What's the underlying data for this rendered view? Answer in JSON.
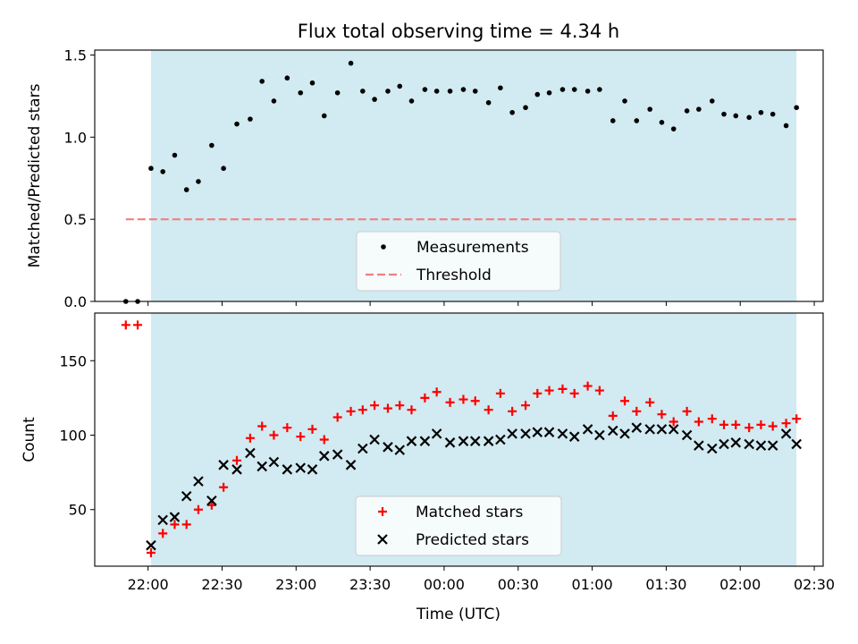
{
  "title": "Flux total observing time = 4.34 h",
  "xlabel": "Time (UTC)",
  "x_tick_labels": [
    "22:00",
    "22:30",
    "23:00",
    "23:30",
    "00:00",
    "00:30",
    "01:00",
    "01:30",
    "02:00",
    "02:30"
  ],
  "colors": {
    "observing_band": "#add8e6",
    "measurements": "#000000",
    "threshold": "#f08080",
    "matched": "#ff0000",
    "predicted": "#000000"
  },
  "chart_data": [
    {
      "type": "scatter",
      "ylabel": "Matched/Predicted stars",
      "y_ticks": [
        "0.0",
        "0.5",
        "1.0",
        "1.5"
      ],
      "ylim": [
        0,
        1.53
      ],
      "x_unit": "hours after 22:00 UTC",
      "xlim": [
        -0.36,
        4.56
      ],
      "legend": {
        "placement": "lower center",
        "entries": [
          "Measurements",
          "Threshold"
        ]
      },
      "shaded_span": [
        0.02,
        4.38
      ],
      "threshold": {
        "name": "Threshold",
        "y": 0.5,
        "x_range": [
          -0.15,
          4.38
        ]
      },
      "series": [
        {
          "name": "Measurements",
          "x": [
            -0.15,
            -0.07,
            0.02,
            0.1,
            0.18,
            0.26,
            0.34,
            0.43,
            0.51,
            0.6,
            0.69,
            0.77,
            0.85,
            0.94,
            1.03,
            1.11,
            1.19,
            1.28,
            1.37,
            1.45,
            1.53,
            1.62,
            1.7,
            1.78,
            1.87,
            1.95,
            2.04,
            2.13,
            2.21,
            2.3,
            2.38,
            2.46,
            2.55,
            2.63,
            2.71,
            2.8,
            2.88,
            2.97,
            3.05,
            3.14,
            3.22,
            3.3,
            3.39,
            3.47,
            3.55,
            3.64,
            3.72,
            3.81,
            3.89,
            3.97,
            4.06,
            4.14,
            4.22,
            4.31,
            4.38
          ],
          "y": [
            0.0,
            0.0,
            0.81,
            0.79,
            0.89,
            0.68,
            0.73,
            0.95,
            0.81,
            1.08,
            1.11,
            1.34,
            1.22,
            1.36,
            1.27,
            1.33,
            1.13,
            1.27,
            1.45,
            1.28,
            1.23,
            1.28,
            1.31,
            1.22,
            1.29,
            1.28,
            1.28,
            1.29,
            1.28,
            1.21,
            1.3,
            1.15,
            1.18,
            1.26,
            1.27,
            1.29,
            1.29,
            1.28,
            1.29,
            1.1,
            1.22,
            1.1,
            1.17,
            1.09,
            1.05,
            1.16,
            1.17,
            1.22,
            1.14,
            1.13,
            1.12,
            1.15,
            1.14,
            1.07,
            1.18
          ]
        }
      ]
    },
    {
      "type": "scatter",
      "ylabel": "Count",
      "y_ticks": [
        "50",
        "100",
        "150"
      ],
      "ylim": [
        12,
        182
      ],
      "x_unit": "hours after 22:00 UTC",
      "xlim": [
        -0.36,
        4.56
      ],
      "legend": {
        "placement": "lower center",
        "entries": [
          "Matched stars",
          "Predicted stars"
        ]
      },
      "shaded_span": [
        0.02,
        4.38
      ],
      "series": [
        {
          "name": "Matched stars",
          "x": [
            -0.15,
            -0.07,
            0.02,
            0.1,
            0.18,
            0.26,
            0.34,
            0.43,
            0.51,
            0.6,
            0.69,
            0.77,
            0.85,
            0.94,
            1.03,
            1.11,
            1.19,
            1.28,
            1.37,
            1.45,
            1.53,
            1.62,
            1.7,
            1.78,
            1.87,
            1.95,
            2.04,
            2.13,
            2.21,
            2.3,
            2.38,
            2.46,
            2.55,
            2.63,
            2.71,
            2.8,
            2.88,
            2.97,
            3.05,
            3.14,
            3.22,
            3.3,
            3.39,
            3.47,
            3.55,
            3.64,
            3.72,
            3.81,
            3.89,
            3.97,
            4.06,
            4.14,
            4.22,
            4.31,
            4.38
          ],
          "y": [
            174,
            174,
            21,
            34,
            40,
            40,
            50,
            53,
            65,
            83,
            98,
            106,
            100,
            105,
            99,
            104,
            97,
            112,
            116,
            117,
            120,
            118,
            120,
            117,
            125,
            129,
            122,
            124,
            123,
            117,
            128,
            116,
            120,
            128,
            130,
            131,
            128,
            133,
            130,
            113,
            123,
            116,
            122,
            114,
            109,
            116,
            109,
            111,
            107,
            107,
            105,
            107,
            106,
            108,
            111
          ]
        },
        {
          "name": "Predicted stars",
          "x": [
            0.02,
            0.1,
            0.18,
            0.26,
            0.34,
            0.43,
            0.51,
            0.6,
            0.69,
            0.77,
            0.85,
            0.94,
            1.03,
            1.11,
            1.19,
            1.28,
            1.37,
            1.45,
            1.53,
            1.62,
            1.7,
            1.78,
            1.87,
            1.95,
            2.04,
            2.13,
            2.21,
            2.3,
            2.38,
            2.46,
            2.55,
            2.63,
            2.71,
            2.8,
            2.88,
            2.97,
            3.05,
            3.14,
            3.22,
            3.3,
            3.39,
            3.47,
            3.55,
            3.64,
            3.72,
            3.81,
            3.89,
            3.97,
            4.06,
            4.14,
            4.22,
            4.31,
            4.38
          ],
          "y": [
            26,
            43,
            45,
            59,
            69,
            56,
            80,
            77,
            88,
            79,
            82,
            77,
            78,
            77,
            86,
            87,
            80,
            91,
            97,
            92,
            90,
            96,
            96,
            101,
            95,
            96,
            96,
            96,
            97,
            101,
            101,
            102,
            102,
            101,
            99,
            104,
            100,
            103,
            101,
            105,
            104,
            104,
            104,
            100,
            93,
            91,
            94,
            95,
            94,
            93,
            93,
            101,
            94
          ]
        }
      ]
    }
  ]
}
